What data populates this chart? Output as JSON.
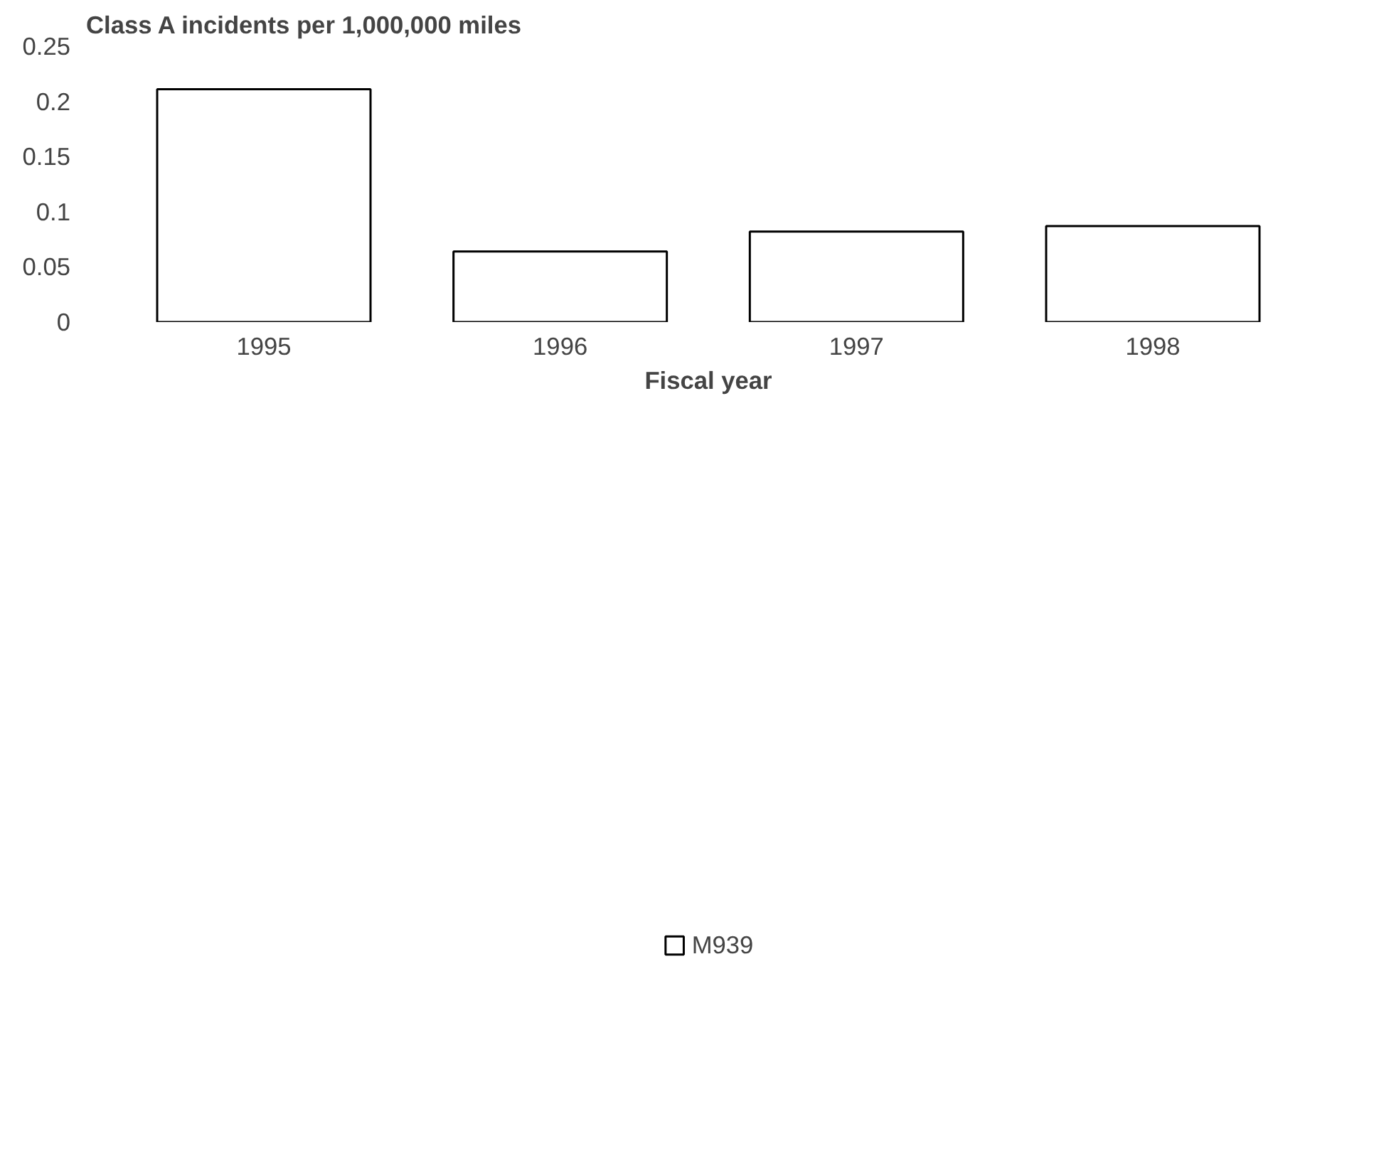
{
  "chart_data": {
    "type": "bar",
    "ylabel": "Class A incidents per 1,000,000 miles",
    "xlabel": "Fiscal year",
    "categories": [
      "1995",
      "1996",
      "1997",
      "1998"
    ],
    "series": [
      {
        "name": "M939",
        "color": "#ffffff",
        "values": [
          0.211,
          0.064,
          0.082,
          0.087
        ]
      }
    ],
    "ylim": [
      0,
      0.25
    ],
    "yticks": [
      0,
      0.05,
      0.1,
      0.15,
      0.2,
      0.25
    ],
    "grid": false,
    "legend": "bottom"
  }
}
